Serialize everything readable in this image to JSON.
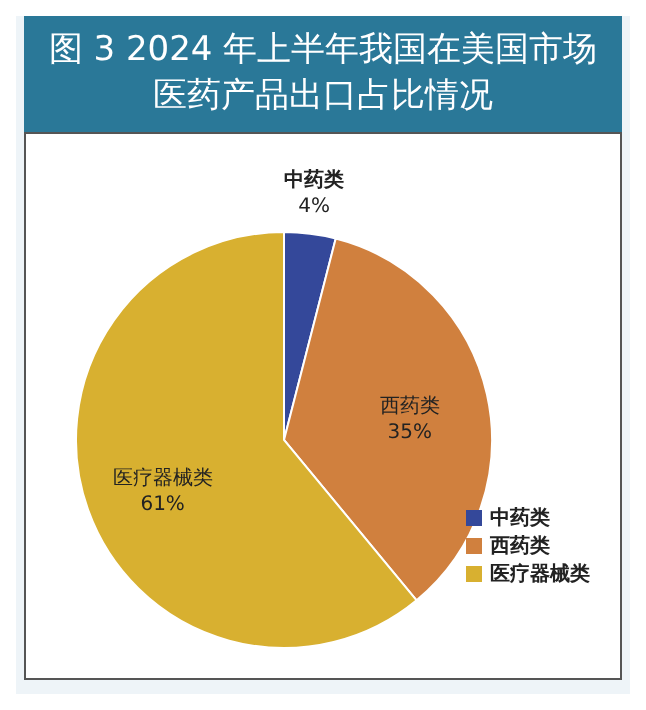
{
  "chart_data": {
    "type": "pie",
    "title": "图 3 2024 年上半年我国在美国市场医药产品出口占比情况",
    "categories": [
      "中药类",
      "西药类",
      "医疗器械类"
    ],
    "values": [
      4,
      35,
      61
    ],
    "colors": [
      "#34489a",
      "#d0803e",
      "#d8b030"
    ],
    "value_labels": [
      "4%",
      "35%",
      "61%"
    ],
    "legend": "bottom right"
  }
}
